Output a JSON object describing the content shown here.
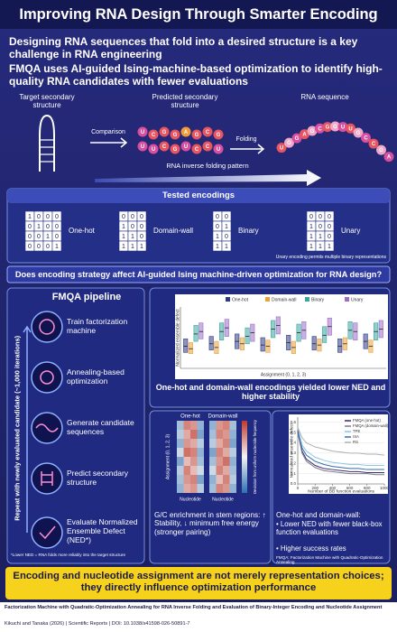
{
  "header": {
    "title": "Improving RNA Design Through Smarter Encoding"
  },
  "intro": [
    "Designing RNA sequences that fold into a desired structure is a key challenge in RNA engineering",
    "FMQA uses AI-guided Ising-machine-based optimization to identify high-quality RNA candidates with fewer evaluations"
  ],
  "diagram": {
    "target": "Target secondary structure",
    "predicted": "Predicted secondary structure",
    "sequence": "RNA sequence",
    "comparison": "Comparison",
    "folding": "Folding",
    "pattern": "RNA inverse folding pattern",
    "predicted_letters": [
      "U",
      "C",
      "G",
      "G",
      "A",
      "G",
      "C",
      "G",
      "U",
      "U",
      "C",
      "G",
      "U",
      "C",
      "C",
      "U"
    ],
    "sequence_letters": [
      "U",
      "G",
      "G",
      "A",
      "G",
      "C",
      "G",
      "G",
      "U",
      "U",
      "G",
      "C",
      "C",
      "G",
      "A"
    ]
  },
  "encodings": {
    "title": "Tested encodings",
    "items": [
      {
        "name": "One-hot",
        "matrix": [
          [
            1,
            0,
            0,
            0
          ],
          [
            0,
            1,
            0,
            0
          ],
          [
            0,
            0,
            1,
            0
          ],
          [
            0,
            0,
            0,
            1
          ]
        ]
      },
      {
        "name": "Domain-wall",
        "matrix": [
          [
            0,
            0,
            0
          ],
          [
            1,
            0,
            0
          ],
          [
            1,
            1,
            0
          ],
          [
            1,
            1,
            1
          ]
        ]
      },
      {
        "name": "Binary",
        "matrix": [
          [
            0,
            0
          ],
          [
            0,
            1
          ],
          [
            1,
            0
          ],
          [
            1,
            1
          ]
        ]
      },
      {
        "name": "Unary",
        "matrix": [
          [
            0,
            0,
            0
          ],
          [
            1,
            0,
            0
          ],
          [
            1,
            1,
            0
          ],
          [
            1,
            1,
            1
          ]
        ]
      }
    ],
    "note": "Unary encoding permits multiple binary representations"
  },
  "question": "Does encoding strategy affect AI-guided Ising machine-driven optimization for RNA design?",
  "pipeline": {
    "title": "FMQA pipeline",
    "loop": "Repeat with newly evaluated candidate (~1,000 iterations)",
    "steps": [
      "Train factorization machine",
      "Annealing-based optimization",
      "Generate candidate sequences",
      "Predict secondary structure",
      "Evaluate Normalized Ensemble Defect (NED*)"
    ],
    "note": "*Lower NED = RNA folds more reliably into the target structure"
  },
  "chart_data": [
    {
      "type": "box",
      "ylabel": "Normalized ensemble defect",
      "xlabel": "Assignment (0, 1, 2, 3)",
      "ylim": [
        0,
        0.5
      ],
      "series": [
        {
          "name": "One-hot",
          "color": "#2e3a87",
          "q1": [
            0.13,
            0.15,
            0.16,
            0.14,
            0.15,
            0.15,
            0.13,
            0.16
          ],
          "median": [
            0.18,
            0.2,
            0.22,
            0.19,
            0.21,
            0.2,
            0.18,
            0.22
          ],
          "q3": [
            0.24,
            0.26,
            0.28,
            0.25,
            0.27,
            0.26,
            0.24,
            0.28
          ]
        },
        {
          "name": "Domain-wall",
          "color": "#e8a33c",
          "q1": [
            0.12,
            0.12,
            0.15,
            0.13,
            0.12,
            0.14,
            0.15,
            0.13
          ],
          "median": [
            0.16,
            0.17,
            0.2,
            0.18,
            0.17,
            0.19,
            0.2,
            0.18
          ],
          "q3": [
            0.21,
            0.22,
            0.25,
            0.23,
            0.22,
            0.24,
            0.25,
            0.23
          ]
        },
        {
          "name": "Binary",
          "color": "#3aa6a0",
          "q1": [
            0.22,
            0.23,
            0.2,
            0.25,
            0.22,
            0.21,
            0.24,
            0.23
          ],
          "median": [
            0.28,
            0.3,
            0.26,
            0.32,
            0.29,
            0.27,
            0.31,
            0.3
          ],
          "q3": [
            0.35,
            0.37,
            0.33,
            0.39,
            0.36,
            0.34,
            0.38,
            0.37
          ]
        },
        {
          "name": "Unary",
          "color": "#9b6fc8",
          "q1": [
            0.24,
            0.26,
            0.22,
            0.28,
            0.24,
            0.27,
            0.23,
            0.25
          ],
          "median": [
            0.3,
            0.33,
            0.29,
            0.35,
            0.31,
            0.34,
            0.3,
            0.32
          ],
          "q3": [
            0.37,
            0.4,
            0.36,
            0.42,
            0.38,
            0.41,
            0.37,
            0.39
          ]
        }
      ],
      "caption": "One-hot and domain-wall encodings yielded lower NED and higher stability"
    },
    {
      "type": "heatmap",
      "titles": [
        "One-hot",
        "Domain-wall"
      ],
      "ylabel": "Assignment (0, 1, 2, 3)",
      "xlabel": "Nucleotide",
      "colorbar_label": "Deviation from uniform nucleotide frequency",
      "matrices": [
        [
          [
            -0.4,
            0.6,
            0.5,
            -0.5
          ],
          [
            -0.3,
            0.4,
            0.7,
            -0.6
          ],
          [
            -0.5,
            0.5,
            0.4,
            -0.3
          ],
          [
            -0.2,
            0.7,
            0.6,
            -0.5
          ],
          [
            -0.6,
            0.3,
            0.5,
            -0.4
          ],
          [
            -0.3,
            0.6,
            0.3,
            -0.2
          ],
          [
            -0.4,
            0.5,
            0.6,
            -0.6
          ],
          [
            -0.5,
            0.4,
            0.5,
            -0.3
          ]
        ],
        [
          [
            -0.5,
            0.5,
            0.6,
            -0.4
          ],
          [
            -0.4,
            0.6,
            0.5,
            -0.5
          ],
          [
            -0.3,
            0.4,
            0.6,
            -0.6
          ],
          [
            -0.6,
            0.6,
            0.4,
            -0.3
          ],
          [
            -0.4,
            0.5,
            0.7,
            -0.5
          ],
          [
            -0.2,
            0.6,
            0.4,
            -0.4
          ],
          [
            -0.5,
            0.3,
            0.6,
            -0.3
          ],
          [
            -0.4,
            0.6,
            0.5,
            -0.5
          ]
        ]
      ],
      "caption": "G/C enrichment in stem regions: ↑ Stability, ↓ minimum free energy (stronger pairing)"
    },
    {
      "type": "line",
      "ylabel": "Normalized ensemble defect",
      "xlabel": "Number of BB function evaluations",
      "x": [
        0,
        50,
        100,
        200,
        300,
        400,
        500,
        600,
        700,
        800,
        900,
        1000
      ],
      "series": [
        {
          "name": "FMQA (one-hot)",
          "color": "#3b2a6e",
          "values": [
            0.52,
            0.32,
            0.24,
            0.18,
            0.15,
            0.14,
            0.13,
            0.12,
            0.12,
            0.11,
            0.11,
            0.11
          ]
        },
        {
          "name": "FMQA (domain-wall)",
          "color": "#7a7a8a",
          "values": [
            0.5,
            0.3,
            0.22,
            0.16,
            0.13,
            0.12,
            0.11,
            0.1,
            0.1,
            0.1,
            0.09,
            0.09
          ]
        },
        {
          "name": "TPE",
          "color": "#8ec5e8",
          "values": [
            0.55,
            0.38,
            0.32,
            0.26,
            0.23,
            0.21,
            0.2,
            0.19,
            0.19,
            0.18,
            0.18,
            0.18
          ]
        },
        {
          "name": "ISA",
          "color": "#2f6fb0",
          "values": [
            0.5,
            0.35,
            0.28,
            0.22,
            0.19,
            0.17,
            0.16,
            0.15,
            0.15,
            0.14,
            0.14,
            0.14
          ]
        },
        {
          "name": "RS",
          "color": "#b0b0b0",
          "values": [
            0.55,
            0.45,
            0.4,
            0.36,
            0.34,
            0.32,
            0.31,
            0.3,
            0.3,
            0.29,
            0.29,
            0.28
          ]
        }
      ],
      "xlim": [
        0,
        1000
      ],
      "ylim": [
        0,
        0.65
      ],
      "xticks": [
        0,
        200,
        400,
        600,
        800,
        1000
      ],
      "yticks": [
        {
          "value": 0,
          "label": "0.0"
        },
        0.1,
        0.2,
        0.3,
        0.4,
        0.5,
        0.6
      ],
      "heading": "One-hot and domain-wall:",
      "bullets": [
        "Lower NED with fewer black-box function evaluations",
        "Higher success rates"
      ],
      "note": "FMQA: Factorization Machine with Quadratic-Optimization Annealing"
    }
  ],
  "conclusion": "Encoding and nucleotide assignment are not merely representation choices; they directly influence optimization performance",
  "footer": {
    "title": "Factorization Machine with Quadratic-Optimization Annealing for RNA Inverse Folding and Evaluation of Binary-Integer Encoding and Nucleotide Assignment",
    "citation": "Kikuchi and Tanaka (2026) | Scientific Reports | DOI: 10.1038/s41598-026-50891-7"
  }
}
